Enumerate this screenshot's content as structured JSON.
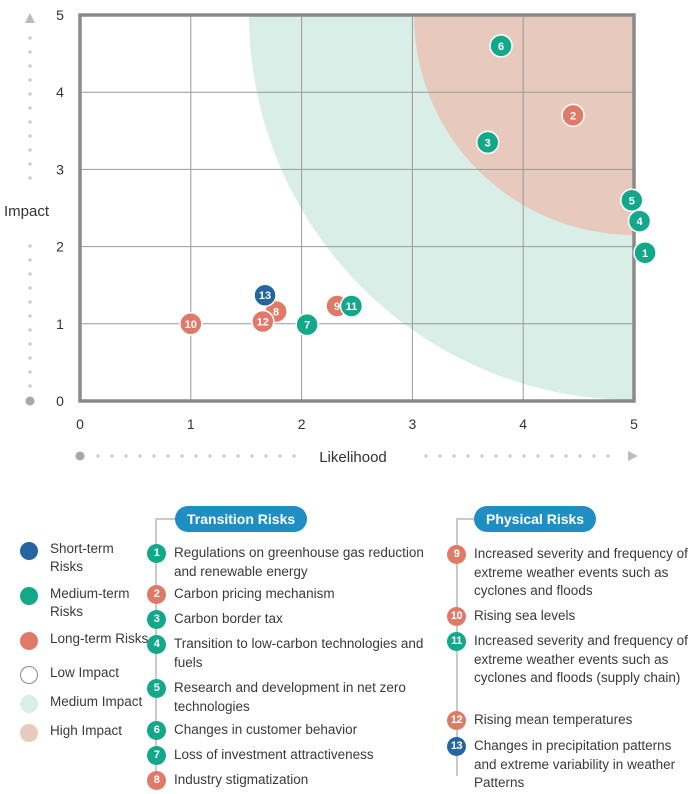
{
  "colors": {
    "short": "#2566a0",
    "medium": "#14a88a",
    "long": "#e07a68",
    "medium_zone": "#d8eee6",
    "high_zone": "#e7c9bd",
    "frame": "#8a8a8a",
    "grid": "#9a9a9a",
    "tag": "#1f8fc3"
  },
  "chart_data": {
    "type": "scatter",
    "xlabel": "Likelihood",
    "ylabel": "Impact",
    "xlim": [
      0,
      5
    ],
    "ylim": [
      0,
      5
    ],
    "x_ticks": [
      "0",
      "1",
      "2",
      "3",
      "4",
      "5"
    ],
    "y_ticks": [
      "0",
      "1",
      "2",
      "3",
      "4",
      "5"
    ],
    "grid": true,
    "points": [
      {
        "id": "1",
        "x": 5.1,
        "y": 1.92,
        "term": "medium"
      },
      {
        "id": "2",
        "x": 4.45,
        "y": 3.7,
        "term": "long"
      },
      {
        "id": "3",
        "x": 3.68,
        "y": 3.35,
        "term": "medium"
      },
      {
        "id": "4",
        "x": 5.05,
        "y": 2.33,
        "term": "medium"
      },
      {
        "id": "5",
        "x": 4.98,
        "y": 2.6,
        "term": "medium"
      },
      {
        "id": "6",
        "x": 3.8,
        "y": 4.6,
        "term": "medium"
      },
      {
        "id": "7",
        "x": 2.05,
        "y": 0.99,
        "term": "medium"
      },
      {
        "id": "8",
        "x": 1.77,
        "y": 1.16,
        "term": "long"
      },
      {
        "id": "9",
        "x": 2.32,
        "y": 1.23,
        "term": "long"
      },
      {
        "id": "10",
        "x": 1.0,
        "y": 1.0,
        "term": "long"
      },
      {
        "id": "11",
        "x": 2.45,
        "y": 1.23,
        "term": "medium"
      },
      {
        "id": "12",
        "x": 1.65,
        "y": 1.03,
        "term": "long"
      },
      {
        "id": "13",
        "x": 1.67,
        "y": 1.37,
        "term": "short"
      }
    ]
  },
  "legend": {
    "short_label": "Short-term Risks",
    "medium_label": "Medium-term Risks",
    "long_label": "Long-term Risks",
    "low_impact_label": "Low Impact",
    "medium_impact_label": "Medium Impact",
    "high_impact_label": "High Impact"
  },
  "transition": {
    "title": "Transition Risks",
    "items": [
      {
        "num": "1",
        "term": "medium",
        "text": "Regulations on greenhouse gas reduction and renewable energy"
      },
      {
        "num": "2",
        "term": "long",
        "text": "Carbon pricing mechanism"
      },
      {
        "num": "3",
        "term": "medium",
        "text": "Carbon border tax"
      },
      {
        "num": "4",
        "term": "medium",
        "text": "Transition to low-carbon technologies and fuels"
      },
      {
        "num": "5",
        "term": "medium",
        "text": "Research and development in net zero technologies"
      },
      {
        "num": "6",
        "term": "medium",
        "text": "Changes in customer behavior"
      },
      {
        "num": "7",
        "term": "medium",
        "text": "Loss of investment attractiveness"
      },
      {
        "num": "8",
        "term": "long",
        "text": "Industry stigmatization"
      }
    ]
  },
  "physical": {
    "title": "Physical Risks",
    "items": [
      {
        "num": "9",
        "term": "long",
        "text": "Increased severity and frequency of extreme weather events such as cyclones and floods"
      },
      {
        "num": "10",
        "term": "long",
        "text": "Rising sea levels"
      },
      {
        "num": "11",
        "term": "medium",
        "text": "Increased severity and frequency of extreme weather events such as cyclones and floods (supply chain)"
      },
      {
        "num": "12",
        "term": "long",
        "text": "Rising mean temperatures"
      },
      {
        "num": "13",
        "term": "short",
        "text": "Changes in precipitation patterns and extreme variability in weather Patterns"
      }
    ]
  }
}
